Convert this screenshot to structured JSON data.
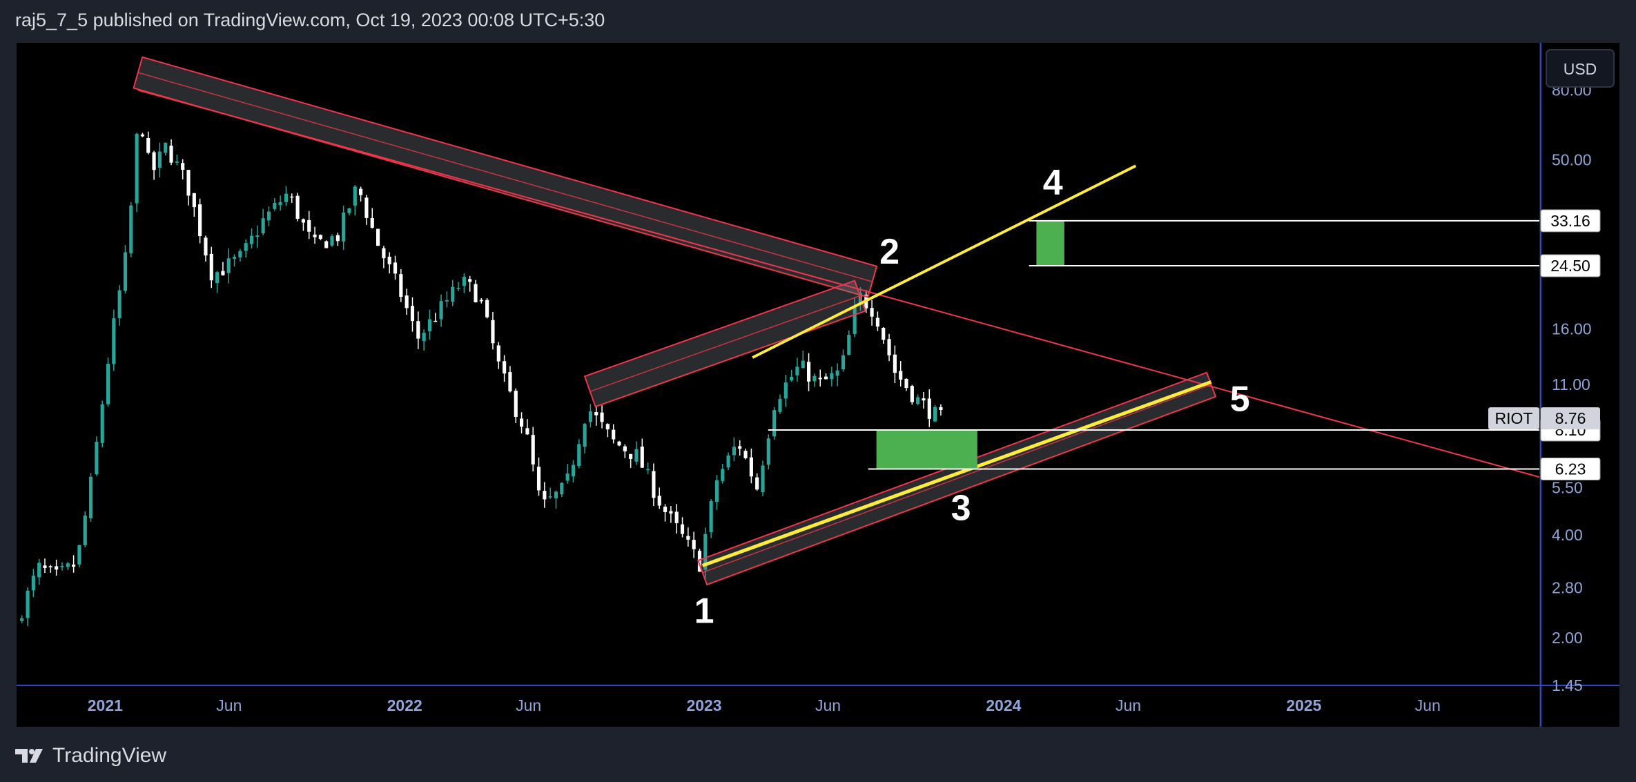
{
  "header": {
    "text": "raj5_7_5 published on TradingView.com, Oct 19, 2023 00:08 UTC+5:30"
  },
  "footer": {
    "brand": "TradingView",
    "logo_icon": "tradingview-logo-icon"
  },
  "colors": {
    "background": "#000000",
    "frame": "#1e222d",
    "axis_line": "#2b48c8",
    "candle_up": "#26a69a",
    "candle_down": "#ffffff",
    "channel": "#f0364b",
    "trendline_yellow": "#ffeb3b",
    "target_zone": "#4caf50"
  },
  "chart_data": {
    "type": "candlestick",
    "symbol": "RIOT",
    "currency": "USD",
    "y_scale": "log",
    "ylim": [
      1.45,
      110
    ],
    "x_range": [
      "2020-09-15",
      "2025-10-15"
    ],
    "price_ticks": [
      80,
      50,
      33.16,
      24.5,
      16,
      11,
      8.76,
      8.1,
      6.23,
      5.5,
      4,
      2.8,
      2.0,
      1.45
    ],
    "price_tick_labels": [
      "80.00",
      "50.00",
      "",
      "",
      "16.00",
      "11.00",
      "",
      "",
      "",
      "5.50",
      "4.00",
      "2.80",
      "2.00",
      "1.45"
    ],
    "x_ticks": [
      {
        "date": "2021-01-01",
        "label": "2021",
        "year": true
      },
      {
        "date": "2021-06-01",
        "label": "Jun",
        "year": false
      },
      {
        "date": "2022-01-01",
        "label": "2022",
        "year": true
      },
      {
        "date": "2022-06-01",
        "label": "Jun",
        "year": false
      },
      {
        "date": "2023-01-01",
        "label": "2023",
        "year": true
      },
      {
        "date": "2023-06-01",
        "label": "Jun",
        "year": false
      },
      {
        "date": "2024-01-01",
        "label": "2024",
        "year": true
      },
      {
        "date": "2024-06-01",
        "label": "Jun",
        "year": false
      },
      {
        "date": "2025-01-01",
        "label": "2025",
        "year": true
      },
      {
        "date": "2025-06-01",
        "label": "Jun",
        "year": false
      }
    ],
    "price_path": [
      [
        "2020-09-18",
        2.2
      ],
      [
        "2020-10-15",
        3.2
      ],
      [
        "2020-11-05",
        3.0
      ],
      [
        "2020-12-01",
        3.3
      ],
      [
        "2020-12-20",
        6.0
      ],
      [
        "2021-01-10",
        14
      ],
      [
        "2021-02-01",
        28
      ],
      [
        "2021-02-15",
        70
      ],
      [
        "2021-03-01",
        45
      ],
      [
        "2021-03-20",
        55
      ],
      [
        "2021-04-15",
        42
      ],
      [
        "2021-05-15",
        23
      ],
      [
        "2021-06-20",
        26
      ],
      [
        "2021-07-15",
        33
      ],
      [
        "2021-08-15",
        40
      ],
      [
        "2021-09-15",
        28
      ],
      [
        "2021-10-15",
        30
      ],
      [
        "2021-11-08",
        42
      ],
      [
        "2021-12-01",
        29
      ],
      [
        "2022-01-01",
        20
      ],
      [
        "2022-01-20",
        15
      ],
      [
        "2022-02-15",
        18
      ],
      [
        "2022-03-15",
        22
      ],
      [
        "2022-04-05",
        20
      ],
      [
        "2022-05-01",
        12
      ],
      [
        "2022-06-01",
        8
      ],
      [
        "2022-06-20",
        4.8
      ],
      [
        "2022-07-20",
        5.5
      ],
      [
        "2022-08-15",
        9.5
      ],
      [
        "2022-09-15",
        7.5
      ],
      [
        "2022-10-15",
        6.8
      ],
      [
        "2022-11-15",
        4.8
      ],
      [
        "2022-12-30",
        3.3
      ],
      [
        "2023-01-20",
        5.8
      ],
      [
        "2023-02-15",
        7.5
      ],
      [
        "2023-03-10",
        5.5
      ],
      [
        "2023-04-01",
        10
      ],
      [
        "2023-05-01",
        12.5
      ],
      [
        "2023-05-25",
        11
      ],
      [
        "2023-06-20",
        12
      ],
      [
        "2023-07-12",
        20
      ],
      [
        "2023-08-01",
        18
      ],
      [
        "2023-08-25",
        12
      ],
      [
        "2023-09-20",
        10
      ],
      [
        "2023-10-18",
        8.76
      ]
    ],
    "current_price": {
      "value": 8.76,
      "label": "8.76",
      "symbol_label": "RIOT"
    },
    "levels": [
      {
        "value": 33.16,
        "label": "33.16",
        "from": "2024-02-01"
      },
      {
        "value": 24.5,
        "label": "24.50",
        "from": "2024-02-01"
      },
      {
        "value": 8.1,
        "label": "8.10",
        "from": "2023-03-20"
      },
      {
        "value": 6.23,
        "label": "6.23",
        "from": "2023-07-20"
      }
    ],
    "zones": [
      {
        "from": "2024-02-10",
        "to": "2024-03-15",
        "low": 24.5,
        "high": 33.16
      },
      {
        "from": "2023-07-30",
        "to": "2023-11-30",
        "low": 6.23,
        "high": 8.1
      }
    ],
    "channels": [
      {
        "p1": [
          "2021-02-10",
          90
        ],
        "p2": [
          "2023-07-25",
          22
        ],
        "width": 0.1
      },
      {
        "p1": [
          "2022-08-15",
          10.5
        ],
        "p2": [
          "2023-07-10",
          20
        ],
        "width": 0.1
      },
      {
        "p1": [
          "2022-12-30",
          3.1
        ],
        "p2": [
          "2024-09-10",
          11
        ],
        "width": 0.08
      }
    ],
    "trendlines": [
      {
        "p1": [
          "2021-02-10",
          80
        ],
        "p2": [
          "2025-10-15",
          5.9
        ],
        "color": "channel",
        "width": 2
      },
      {
        "p1": [
          "2023-03-01",
          13.2
        ],
        "p2": [
          "2024-06-10",
          48
        ],
        "color": "trendline_yellow",
        "width": 4
      },
      {
        "p1": [
          "2022-12-30",
          3.25
        ],
        "p2": [
          "2024-09-10",
          11.2
        ],
        "color": "trendline_yellow",
        "width": 5
      }
    ],
    "wave_labels": [
      {
        "text": "1",
        "date": "2023-01-01",
        "price": 2.4
      },
      {
        "text": "2",
        "date": "2023-08-15",
        "price": 27
      },
      {
        "text": "3",
        "date": "2023-11-10",
        "price": 4.8
      },
      {
        "text": "4",
        "date": "2024-03-01",
        "price": 43
      },
      {
        "text": "5",
        "date": "2024-10-15",
        "price": 10
      }
    ],
    "currency_label": "USD"
  }
}
